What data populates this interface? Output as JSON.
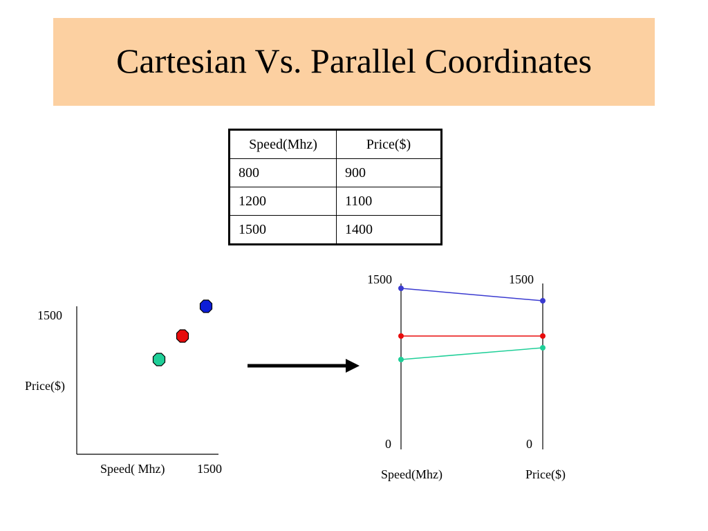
{
  "title": "Cartesian Vs. Parallel Coordinates",
  "table": {
    "headers": [
      "Speed(Mhz)",
      "Price($)"
    ],
    "rows": [
      [
        "800",
        "900"
      ],
      [
        "1200",
        "1100"
      ],
      [
        "1500",
        "1400"
      ]
    ]
  },
  "scatter": {
    "y_tick": "1500",
    "y_label": "Price($)",
    "x_label": "Speed( Mhz)",
    "x_tick": "1500"
  },
  "parallel": {
    "left_top": "1500",
    "right_top": "1500",
    "left_bottom": "0",
    "right_bottom": "0",
    "left_axis_label": "Speed(Mhz)",
    "right_axis_label": "Price($)"
  },
  "colors": {
    "title_background": "#fcd0a1",
    "blue": "#0d1ed8",
    "red": "#e80c0c",
    "green": "#1fcf98",
    "line_blue": "#3a3ad0"
  }
}
